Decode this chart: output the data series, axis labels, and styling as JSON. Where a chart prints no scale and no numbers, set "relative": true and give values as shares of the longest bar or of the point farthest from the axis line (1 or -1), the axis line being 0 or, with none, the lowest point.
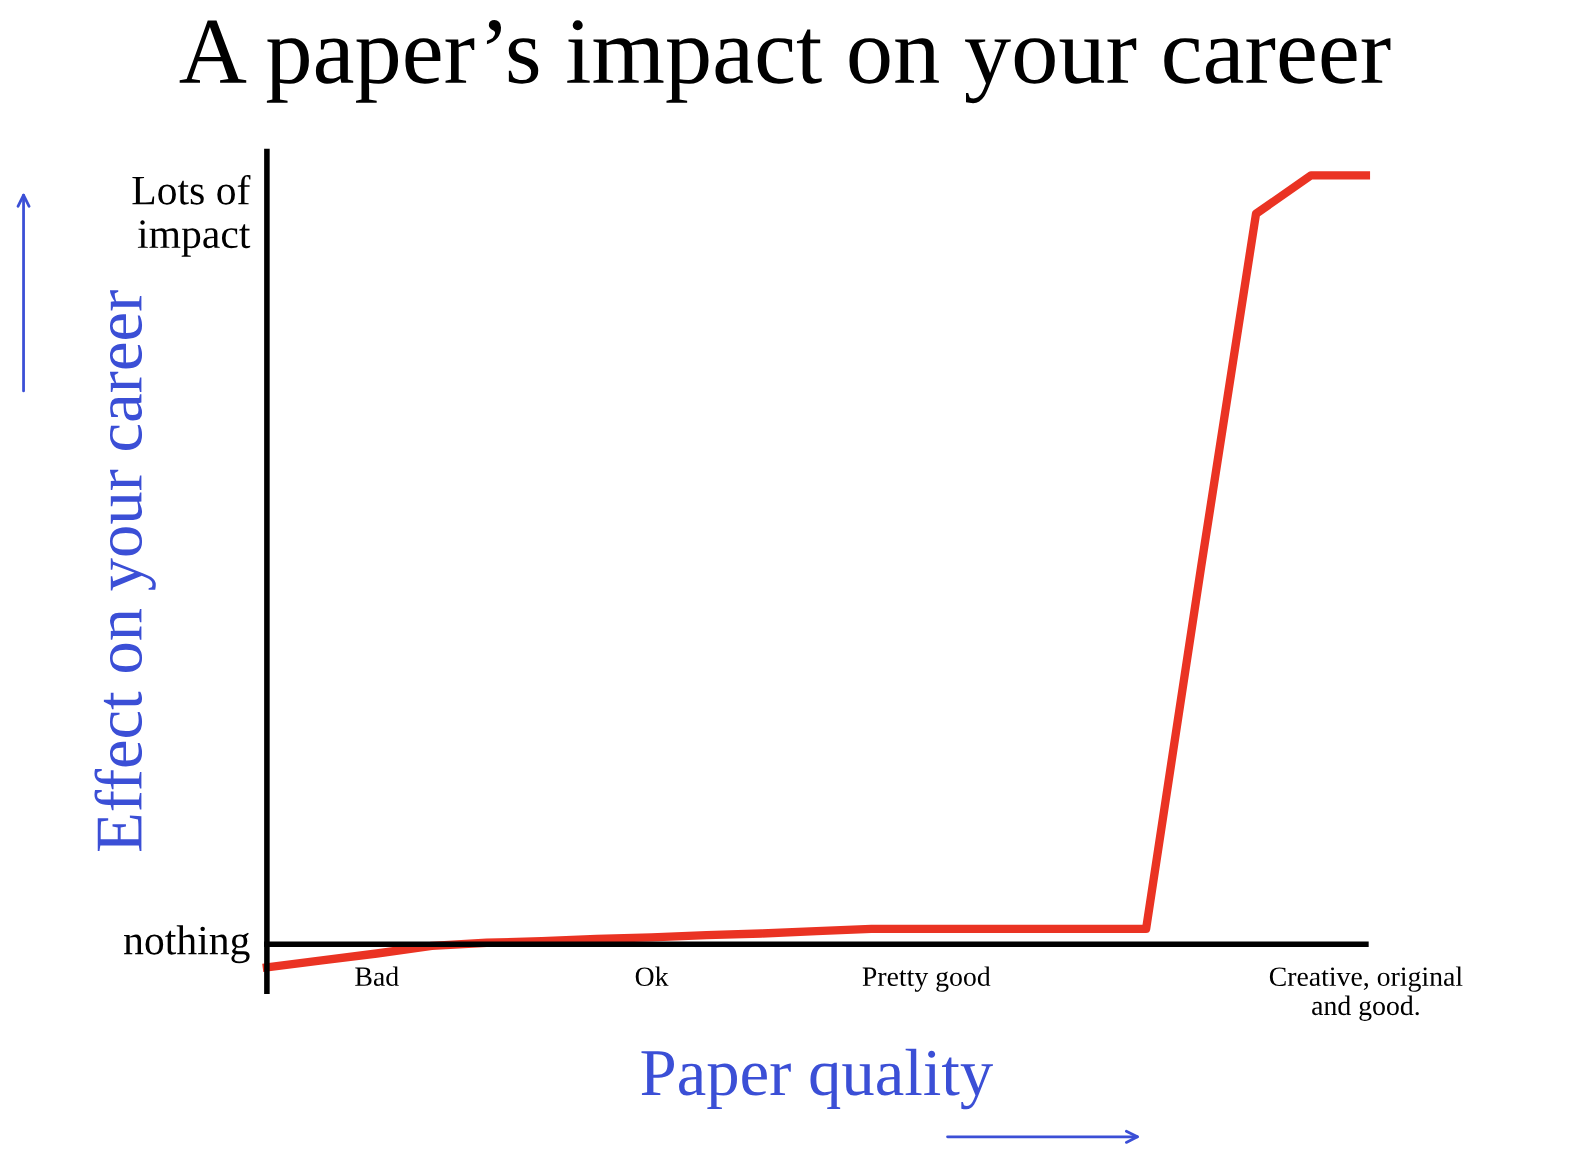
{
  "chart_data": {
    "type": "line",
    "title": "A paper’s impact on your career",
    "xlabel": "Paper quality",
    "ylabel": "Effect on your career",
    "categories": [
      null,
      null,
      "Bad",
      null,
      null,
      null,
      null,
      "Ok",
      null,
      null,
      null,
      null,
      "Pretty good",
      null,
      null,
      null,
      null,
      null,
      null,
      null,
      "Creative, original\nand good."
    ],
    "relative": true,
    "series": [
      {
        "color": "#ea3323",
        "values": [
          -0.03,
          -0.021,
          -0.012,
          -0.002,
          0.002,
          0.004,
          0.007,
          0.009,
          0.012,
          0.014,
          0.017,
          0.02,
          0.02,
          0.02,
          0.02,
          0.02,
          0.02,
          0.49,
          0.95,
          1,
          1
        ]
      }
    ],
    "annotations": [
      "nothing",
      "Lots of\nimpact"
    ],
    "grid": false,
    "legend": false,
    "marker": "none",
    "line_style": "solid"
  }
}
